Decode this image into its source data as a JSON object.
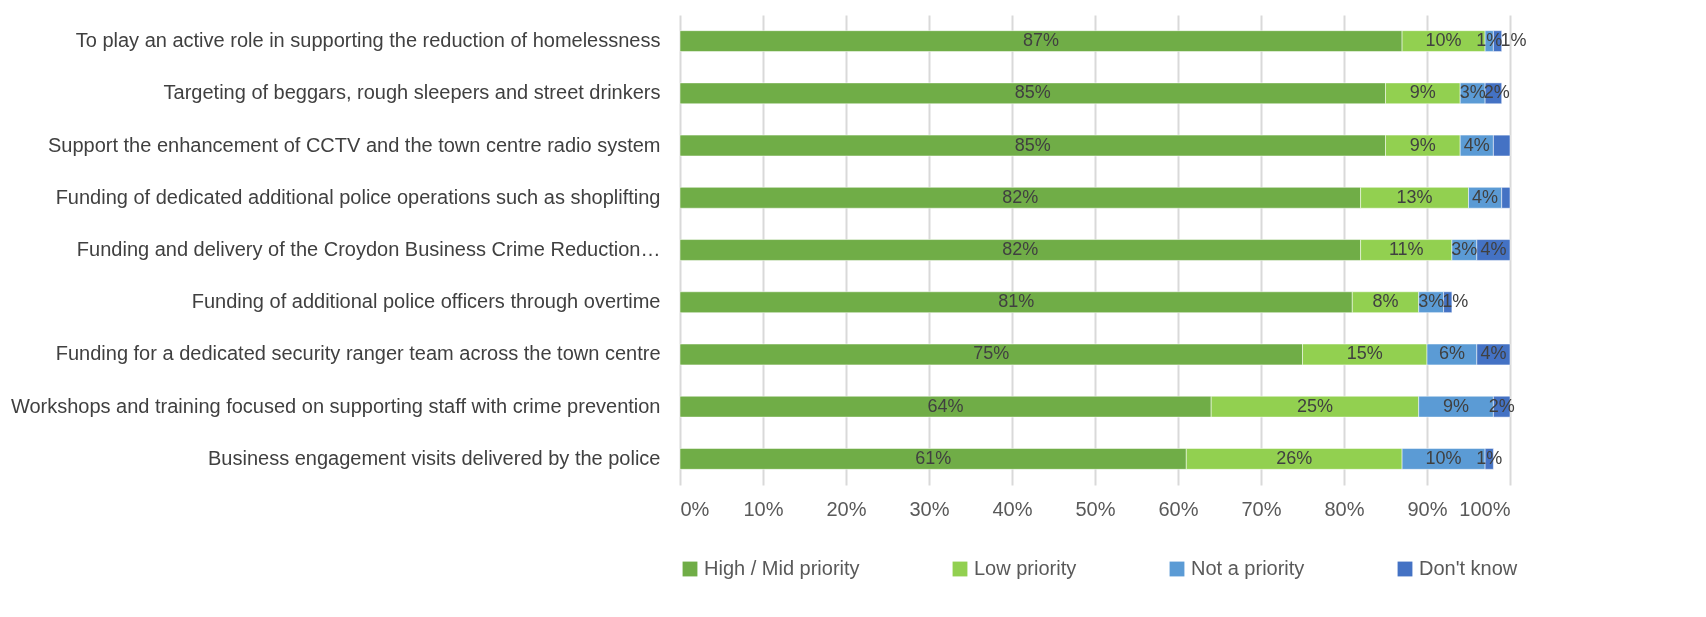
{
  "chart_data": {
    "type": "bar",
    "orientation": "horizontal",
    "stacked": true,
    "categories": [
      "To play an active role in supporting the reduction of homelessness",
      "Targeting of beggars, rough sleepers and street drinkers",
      "Support the enhancement of CCTV and the town centre radio system",
      "Funding of dedicated additional police operations such as shoplifting",
      "Funding and delivery of the Croydon Business Crime Reduction…",
      "Funding of additional police officers through overtime",
      "Funding for a dedicated security ranger team across the town centre",
      "Workshops and training focused on supporting staff with crime prevention",
      "Business engagement visits delivered by the police"
    ],
    "series": [
      {
        "name": "High / Mid priority",
        "color": "#70ad47",
        "values": [
          87,
          85,
          85,
          82,
          82,
          81,
          75,
          64,
          61
        ],
        "value_labels": [
          "87%",
          "85%",
          "85%",
          "82%",
          "82%",
          "81%",
          "75%",
          "64%",
          "61%"
        ]
      },
      {
        "name": "Low priority",
        "color": "#92d050",
        "values": [
          10,
          9,
          9,
          13,
          11,
          8,
          15,
          25,
          26
        ],
        "value_labels": [
          "10%",
          "9%",
          "9%",
          "13%",
          "11%",
          "8%",
          "15%",
          "25%",
          "26%"
        ]
      },
      {
        "name": "Not a priority",
        "color": "#5b9bd5",
        "values": [
          1,
          3,
          4,
          4,
          3,
          3,
          6,
          9,
          10
        ],
        "value_labels": [
          "1%",
          "3%",
          "4%",
          "4%",
          "3%",
          "3%",
          "6%",
          "9%",
          "10%"
        ]
      },
      {
        "name": "Don't know",
        "color": "#4472c4",
        "values": [
          1,
          2,
          2,
          1,
          4,
          1,
          4,
          2,
          1
        ],
        "value_labels": [
          "1%",
          "2%",
          null,
          null,
          "4%",
          "1%",
          "4%",
          "2%",
          "1%"
        ]
      }
    ],
    "xlim": [
      0,
      100
    ],
    "xticks": [
      {
        "value": 0,
        "label": "0%"
      },
      {
        "value": 10,
        "label": "10%"
      },
      {
        "value": 20,
        "label": "20%"
      },
      {
        "value": 30,
        "label": "30%"
      },
      {
        "value": 40,
        "label": "40%"
      },
      {
        "value": 50,
        "label": "50%"
      },
      {
        "value": 60,
        "label": "60%"
      },
      {
        "value": 70,
        "label": "70%"
      },
      {
        "value": 80,
        "label": "80%"
      },
      {
        "value": 90,
        "label": "90%"
      },
      {
        "value": 100,
        "label": "100%"
      }
    ],
    "grid": "x",
    "legend": "bottom"
  }
}
